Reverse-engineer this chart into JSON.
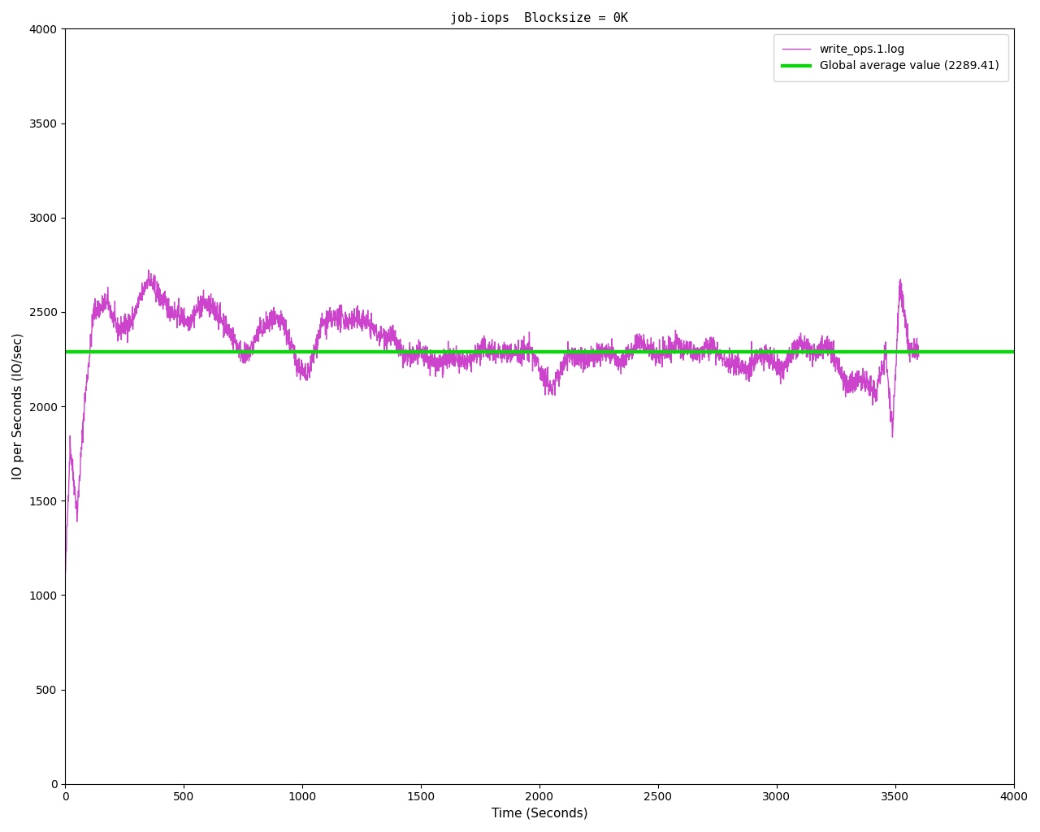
{
  "title": "job-iops  Blocksize = 0K",
  "xlabel": "Time (Seconds)",
  "ylabel": "IO per Seconds (IO/sec)",
  "line_label": "write_ops.1.log",
  "avg_label": "Global average value (2289.41)",
  "avg_value": 2289.41,
  "line_color": "#cc44cc",
  "avg_color": "#00dd00",
  "xlim": [
    0,
    4000
  ],
  "ylim": [
    0,
    4000
  ],
  "xticks": [
    0,
    500,
    1000,
    1500,
    2000,
    2500,
    3000,
    3500,
    4000
  ],
  "yticks": [
    0,
    500,
    1000,
    1500,
    2000,
    2500,
    3000,
    3500,
    4000
  ],
  "figsize": [
    12.8,
    10.24
  ],
  "dpi": 100,
  "seed": 42
}
